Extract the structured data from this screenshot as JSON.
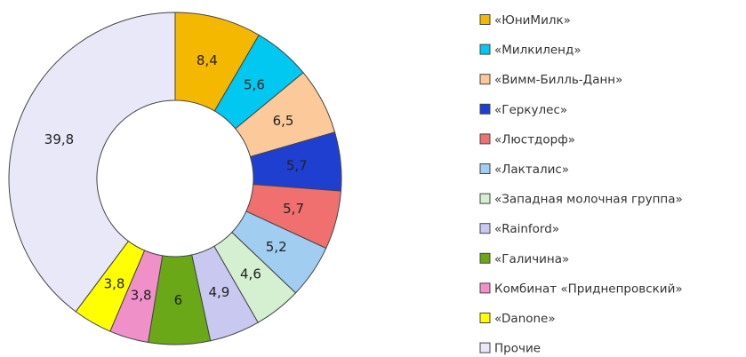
{
  "chart_data": {
    "type": "donut",
    "categories": [
      "«ЮниМилк»",
      "«Милкиленд»",
      "«Вимм-Билль-Данн»",
      "«Геркулес»",
      "«Люстдорф»",
      "«Лакталис»",
      "«Западная молочная группа»",
      "«Rainford»",
      "«Галичина»",
      "Комбинат «Приднепровский»",
      "«Danone»",
      "Прочие"
    ],
    "values": [
      8.4,
      5.6,
      6.5,
      5.7,
      5.7,
      5.2,
      4.6,
      4.9,
      6,
      3.8,
      3.8,
      39.8
    ],
    "value_labels": [
      "8,4",
      "5,6",
      "6,5",
      "5,7",
      "5,7",
      "5,2",
      "4,6",
      "4,9",
      "6",
      "3,8",
      "3,8",
      "39,8"
    ],
    "colors": [
      "#f5b800",
      "#00c8f0",
      "#fbc99a",
      "#1f3fd0",
      "#f07070",
      "#a0cdf0",
      "#d4f0d0",
      "#c8c8f0",
      "#6aa818",
      "#f090c8",
      "#ffff00",
      "#e8e8f8"
    ],
    "legend": "right"
  }
}
